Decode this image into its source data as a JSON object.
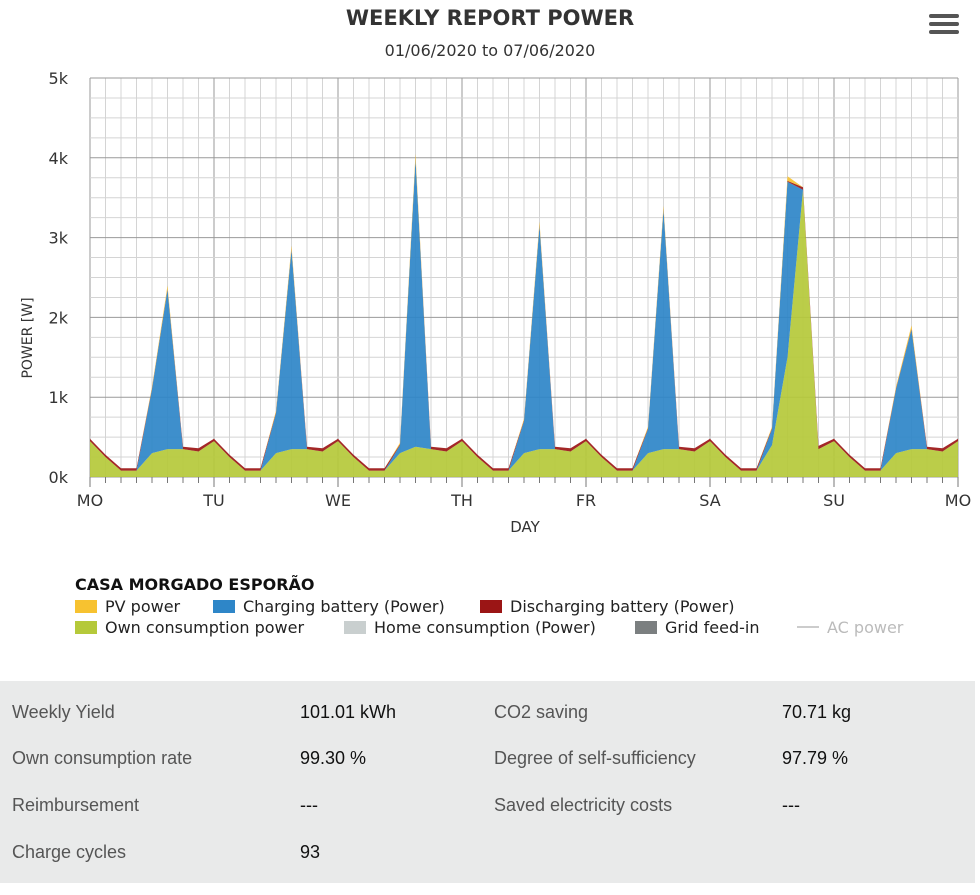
{
  "title": "WEEKLY REPORT POWER",
  "subtitle": "01/06/2020 to 07/06/2020",
  "menu_icon": "hamburger-menu-icon",
  "chart_data": {
    "type": "area",
    "stacked": true,
    "ylabel": "POWER [W]",
    "xlabel": "DAY",
    "ylim": [
      0,
      5000
    ],
    "yticks": [
      "0k",
      "1k",
      "2k",
      "3k",
      "4k",
      "5k"
    ],
    "yticks_values": [
      0,
      1000,
      2000,
      3000,
      4000,
      5000
    ],
    "x_categories": [
      "MO",
      "TU",
      "WE",
      "TH",
      "FR",
      "SA",
      "SU",
      "MO"
    ],
    "grid": true,
    "x_unit": "hours from Monday 00:00",
    "series": [
      {
        "name": "Own consumption power",
        "color": "#b5c93a",
        "x": [
          0,
          3,
          6,
          9,
          12,
          15,
          18,
          21,
          24,
          27,
          30,
          33,
          36,
          39,
          42,
          45,
          48,
          51,
          54,
          57,
          60,
          63,
          66,
          69,
          72,
          75,
          78,
          81,
          84,
          87,
          90,
          93,
          96,
          99,
          102,
          105,
          108,
          111,
          114,
          117,
          120,
          123,
          126,
          129,
          132,
          135,
          138,
          141,
          144,
          147,
          150,
          153,
          156,
          159,
          162,
          165,
          168
        ],
        "y": [
          450,
          250,
          80,
          80,
          300,
          350,
          350,
          320,
          450,
          250,
          80,
          80,
          300,
          350,
          350,
          320,
          450,
          250,
          80,
          80,
          300,
          380,
          350,
          320,
          450,
          250,
          80,
          80,
          300,
          350,
          350,
          320,
          450,
          250,
          80,
          80,
          300,
          350,
          350,
          320,
          450,
          250,
          80,
          80,
          400,
          1500,
          3600,
          350,
          450,
          250,
          80,
          80,
          300,
          350,
          350,
          320,
          450
        ]
      },
      {
        "name": "Charging battery (Power)",
        "color": "#2e86c8",
        "x": [
          0,
          3,
          6,
          9,
          12,
          15,
          18,
          21,
          24,
          27,
          30,
          33,
          36,
          39,
          42,
          45,
          48,
          51,
          54,
          57,
          60,
          63,
          66,
          69,
          72,
          75,
          78,
          81,
          84,
          87,
          90,
          93,
          96,
          99,
          102,
          105,
          108,
          111,
          114,
          117,
          120,
          123,
          126,
          129,
          132,
          135,
          138,
          141,
          144,
          147,
          150,
          153,
          156,
          159,
          162,
          165,
          168
        ],
        "y": [
          0,
          0,
          0,
          0,
          800,
          2000,
          0,
          0,
          0,
          0,
          0,
          0,
          500,
          2500,
          0,
          0,
          0,
          0,
          0,
          0,
          100,
          3600,
          0,
          0,
          0,
          0,
          0,
          0,
          400,
          2800,
          0,
          0,
          0,
          0,
          0,
          0,
          300,
          3000,
          0,
          0,
          0,
          0,
          0,
          0,
          200,
          2200,
          0,
          0,
          0,
          0,
          0,
          0,
          800,
          1500,
          0,
          0,
          0
        ]
      },
      {
        "name": "Discharging battery (Power)",
        "color": "#9b1515",
        "x": [
          0,
          3,
          6,
          9,
          12,
          15,
          18,
          21,
          24,
          27,
          30,
          33,
          36,
          39,
          42,
          45,
          48,
          51,
          54,
          57,
          60,
          63,
          66,
          69,
          72,
          75,
          78,
          81,
          84,
          87,
          90,
          93,
          96,
          99,
          102,
          105,
          108,
          111,
          114,
          117,
          120,
          123,
          126,
          129,
          132,
          135,
          138,
          141,
          144,
          147,
          150,
          153,
          156,
          159,
          162,
          165,
          168
        ],
        "y": [
          30,
          30,
          30,
          30,
          10,
          10,
          30,
          40,
          30,
          30,
          30,
          30,
          10,
          10,
          30,
          40,
          30,
          30,
          30,
          30,
          10,
          10,
          30,
          40,
          30,
          30,
          30,
          30,
          10,
          10,
          30,
          40,
          30,
          30,
          30,
          30,
          10,
          10,
          30,
          40,
          30,
          30,
          30,
          30,
          10,
          10,
          30,
          40,
          30,
          30,
          30,
          30,
          10,
          10,
          30,
          40,
          30
        ]
      },
      {
        "name": "PV power",
        "color": "#f7c230",
        "x": [
          0,
          3,
          6,
          9,
          12,
          15,
          18,
          21,
          24,
          27,
          30,
          33,
          36,
          39,
          42,
          45,
          48,
          51,
          54,
          57,
          60,
          63,
          66,
          69,
          72,
          75,
          78,
          81,
          84,
          87,
          90,
          93,
          96,
          99,
          102,
          105,
          108,
          111,
          114,
          117,
          120,
          123,
          126,
          129,
          132,
          135,
          138,
          141,
          144,
          147,
          150,
          153,
          156,
          159,
          162,
          165,
          168
        ],
        "y": [
          0,
          0,
          0,
          0,
          20,
          40,
          0,
          0,
          0,
          0,
          0,
          0,
          20,
          40,
          0,
          0,
          0,
          0,
          0,
          0,
          20,
          60,
          0,
          0,
          0,
          0,
          0,
          0,
          20,
          40,
          0,
          0,
          0,
          0,
          0,
          0,
          20,
          40,
          0,
          0,
          0,
          0,
          0,
          0,
          20,
          60,
          0,
          0,
          0,
          0,
          0,
          0,
          20,
          40,
          0,
          0,
          0
        ]
      },
      {
        "name": "Home consumption (Power)",
        "color": "#c9cfcf",
        "x": [],
        "y": []
      },
      {
        "name": "Grid feed-in",
        "color": "#7b7f80",
        "x": [],
        "y": []
      },
      {
        "name": "AC power",
        "color": "#cccccc",
        "x": [],
        "y": [],
        "hidden": true
      }
    ]
  },
  "legend": {
    "title": "CASA MORGADO ESPORÃO",
    "items": [
      {
        "label": "PV power",
        "color": "#f7c230"
      },
      {
        "label": "Charging battery (Power)",
        "color": "#2e86c8"
      },
      {
        "label": "Discharging battery (Power)",
        "color": "#9b1515"
      },
      {
        "label": "Own consumption power",
        "color": "#b5c93a"
      },
      {
        "label": "Home consumption (Power)",
        "color": "#c9cfcf"
      },
      {
        "label": "Grid feed-in",
        "color": "#7b7f80"
      },
      {
        "label": "AC power",
        "color": "#cccccc"
      }
    ]
  },
  "stats": {
    "weekly_yield": {
      "label": "Weekly Yield",
      "value": "101.01 kWh"
    },
    "co2_saving": {
      "label": "CO2 saving",
      "value": "70.71 kg"
    },
    "own_consumption_rate": {
      "label": "Own consumption rate",
      "value": "99.30 %"
    },
    "self_sufficiency": {
      "label": "Degree of self-sufficiency",
      "value": "97.79 %"
    },
    "reimbursement": {
      "label": "Reimbursement",
      "value": "---"
    },
    "saved_costs": {
      "label": "Saved electricity costs",
      "value": "---"
    },
    "charge_cycles": {
      "label": "Charge cycles",
      "value": "93"
    }
  }
}
